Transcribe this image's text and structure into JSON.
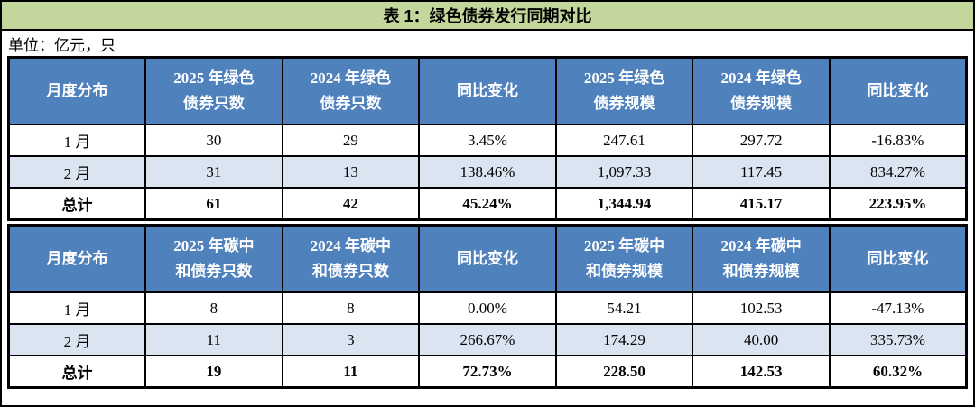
{
  "title": "表 1：绿色债券发行同期对比",
  "unit_note": "单位：亿元，只",
  "colors": {
    "title_bar_green": "#c3d69b",
    "header_blue": "#4f81bd",
    "row_highlight_lightblue": "#dbe5f1",
    "border_black": "#000000",
    "header_text": "#ffffff"
  },
  "tables": [
    {
      "name": "green-bond-table",
      "headers": [
        "月度分布",
        "2025 年绿色\n债券只数",
        "2024 年绿色\n债券只数",
        "同比变化",
        "2025 年绿色\n债券规模",
        "2024 年绿色\n债券规模",
        "同比变化"
      ],
      "rows": [
        {
          "style": "normal",
          "cells": [
            "1 月",
            "30",
            "29",
            "3.45%",
            "247.61",
            "297.72",
            "-16.83%"
          ]
        },
        {
          "style": "highlight",
          "cells": [
            "2 月",
            "31",
            "13",
            "138.46%",
            "1,097.33",
            "117.45",
            "834.27%"
          ]
        },
        {
          "style": "total",
          "cells": [
            "总计",
            "61",
            "42",
            "45.24%",
            "1,344.94",
            "415.17",
            "223.95%"
          ]
        }
      ]
    },
    {
      "name": "carbon-neutral-bond-table",
      "headers": [
        "月度分布",
        "2025 年碳中\n和债券只数",
        "2024 年碳中\n和债券只数",
        "同比变化",
        "2025 年碳中\n和债券规模",
        "2024 年碳中\n和债券规模",
        "同比变化"
      ],
      "rows": [
        {
          "style": "normal",
          "cells": [
            "1 月",
            "8",
            "8",
            "0.00%",
            "54.21",
            "102.53",
            "-47.13%"
          ]
        },
        {
          "style": "highlight",
          "cells": [
            "2 月",
            "11",
            "3",
            "266.67%",
            "174.29",
            "40.00",
            "335.73%"
          ]
        },
        {
          "style": "total",
          "cells": [
            "总计",
            "19",
            "11",
            "72.73%",
            "228.50",
            "142.53",
            "60.32%"
          ]
        }
      ]
    }
  ]
}
